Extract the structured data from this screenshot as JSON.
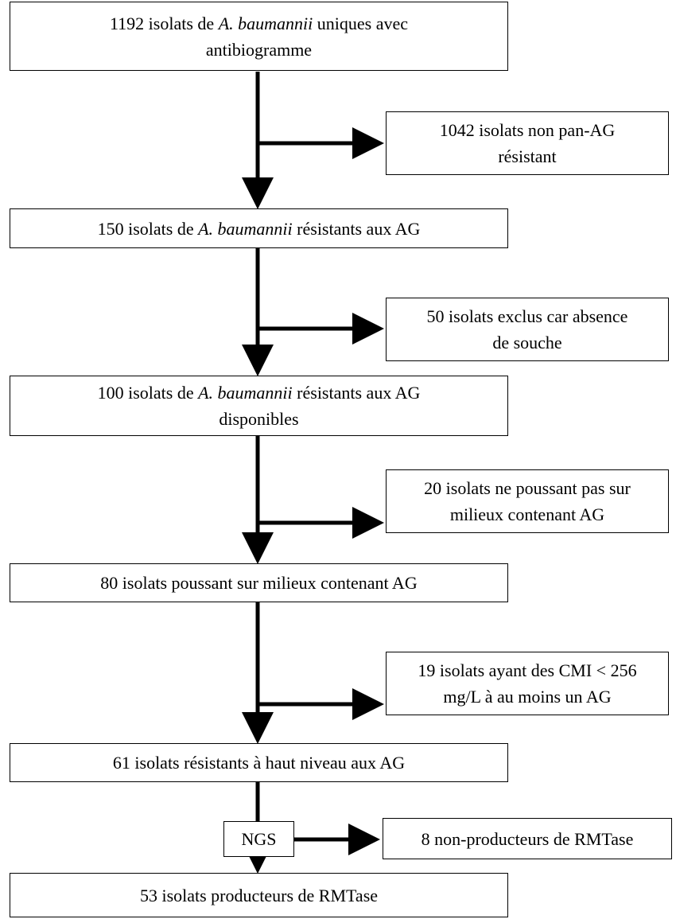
{
  "flowchart": {
    "main_steps": [
      {
        "lines": [
          [
            "1192 isolats de ",
            "A. baumannii",
            " uniques avec"
          ],
          [
            "antibiogramme",
            "",
            ""
          ]
        ]
      },
      {
        "lines": [
          [
            "150 isolats de ",
            "A. baumannii",
            " résistants aux AG"
          ]
        ]
      },
      {
        "lines": [
          [
            "100 isolats de ",
            "A. baumannii",
            " résistants aux AG"
          ],
          [
            "disponibles",
            "",
            ""
          ]
        ]
      },
      {
        "lines": [
          [
            "80 isolats poussant sur milieux contenant AG",
            "",
            ""
          ]
        ]
      },
      {
        "lines": [
          [
            "61 isolats résistants à haut niveau aux AG",
            "",
            ""
          ]
        ]
      },
      {
        "lines": [
          [
            "53 isolats producteurs de RMTase",
            "",
            ""
          ]
        ]
      }
    ],
    "exclusions": [
      {
        "lines": [
          "1042 isolats non pan-AG",
          "résistant"
        ]
      },
      {
        "lines": [
          "50 isolats exclus car absence",
          "de souche"
        ]
      },
      {
        "lines": [
          "20 isolats ne poussant pas sur",
          "milieux contenant AG"
        ]
      },
      {
        "lines": [
          "19 isolats ayant des CMI < 256",
          "mg/L à au moins un AG"
        ]
      },
      {
        "lines": [
          "8 non-producteurs de RMTase"
        ]
      }
    ],
    "method_label": "NGS"
  }
}
